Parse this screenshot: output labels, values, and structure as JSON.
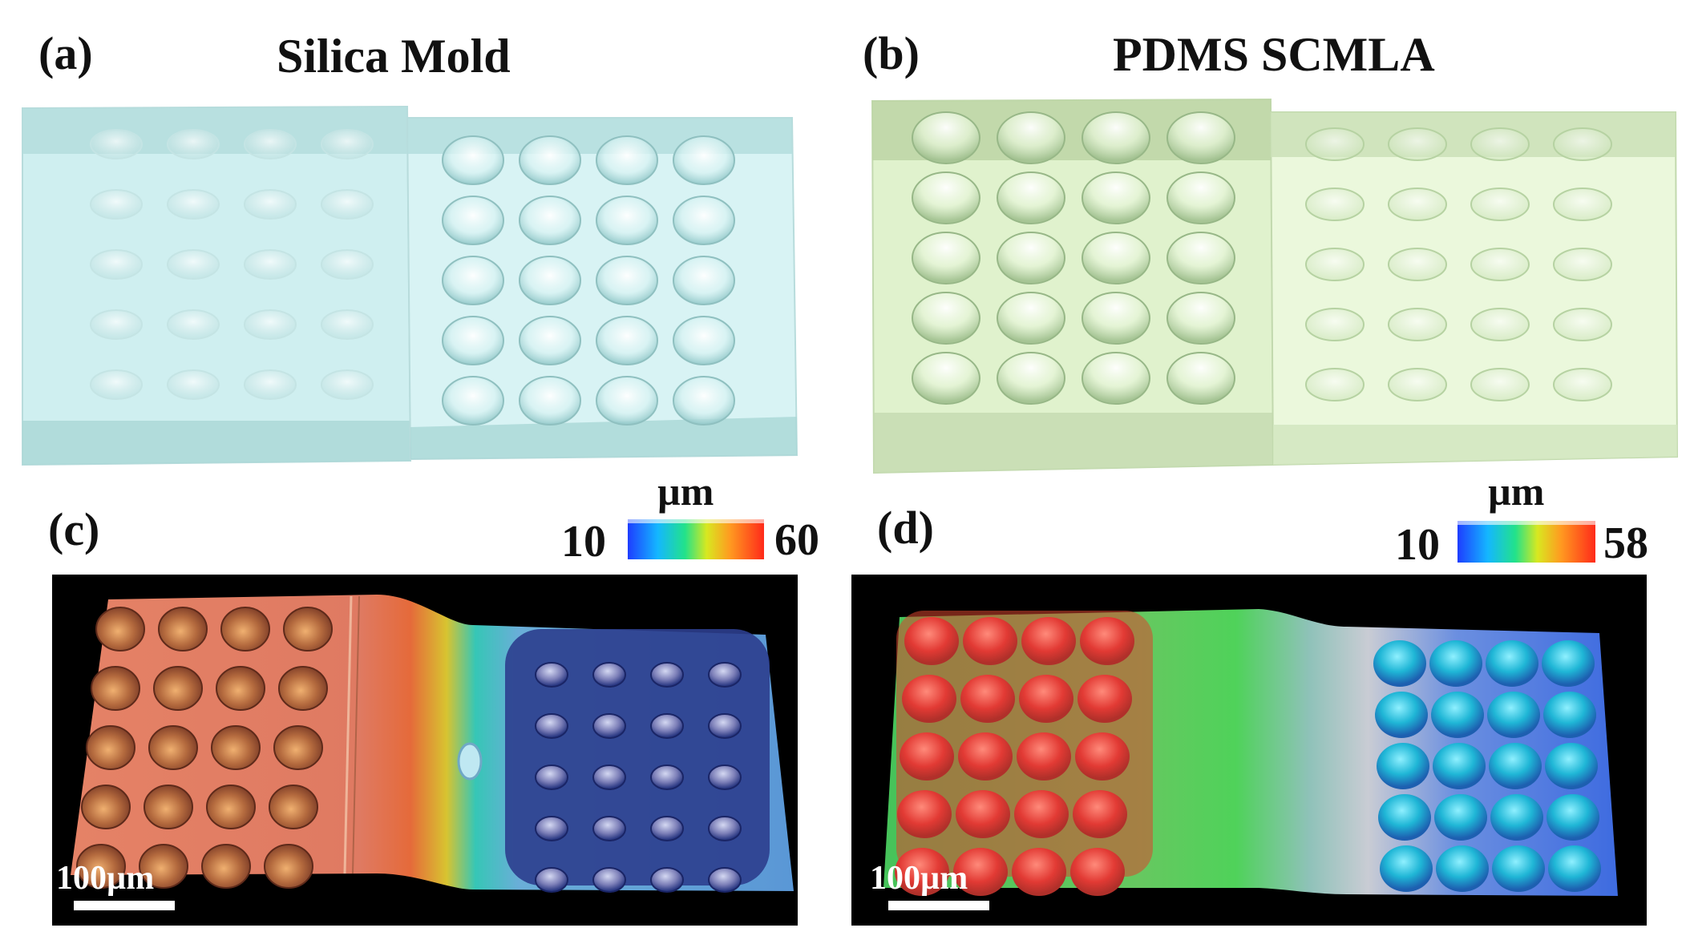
{
  "panels": {
    "a": {
      "label": "(a)",
      "title": "Silica Mold"
    },
    "b": {
      "label": "(b)",
      "title": "PDMS SCMLA"
    },
    "c": {
      "label": "(c)",
      "unit": "µm",
      "min": "10",
      "max": "60",
      "scalebar": "100µm"
    },
    "d": {
      "label": "(d)",
      "unit": "µm",
      "min": "10",
      "max": "58",
      "scalebar": "100µm"
    }
  },
  "colors": {
    "mold": "#cdeeee",
    "mold_dark": "#a9d7d6",
    "pdms": "#e3f5cf",
    "pdms_dark": "#c7dfb4"
  }
}
